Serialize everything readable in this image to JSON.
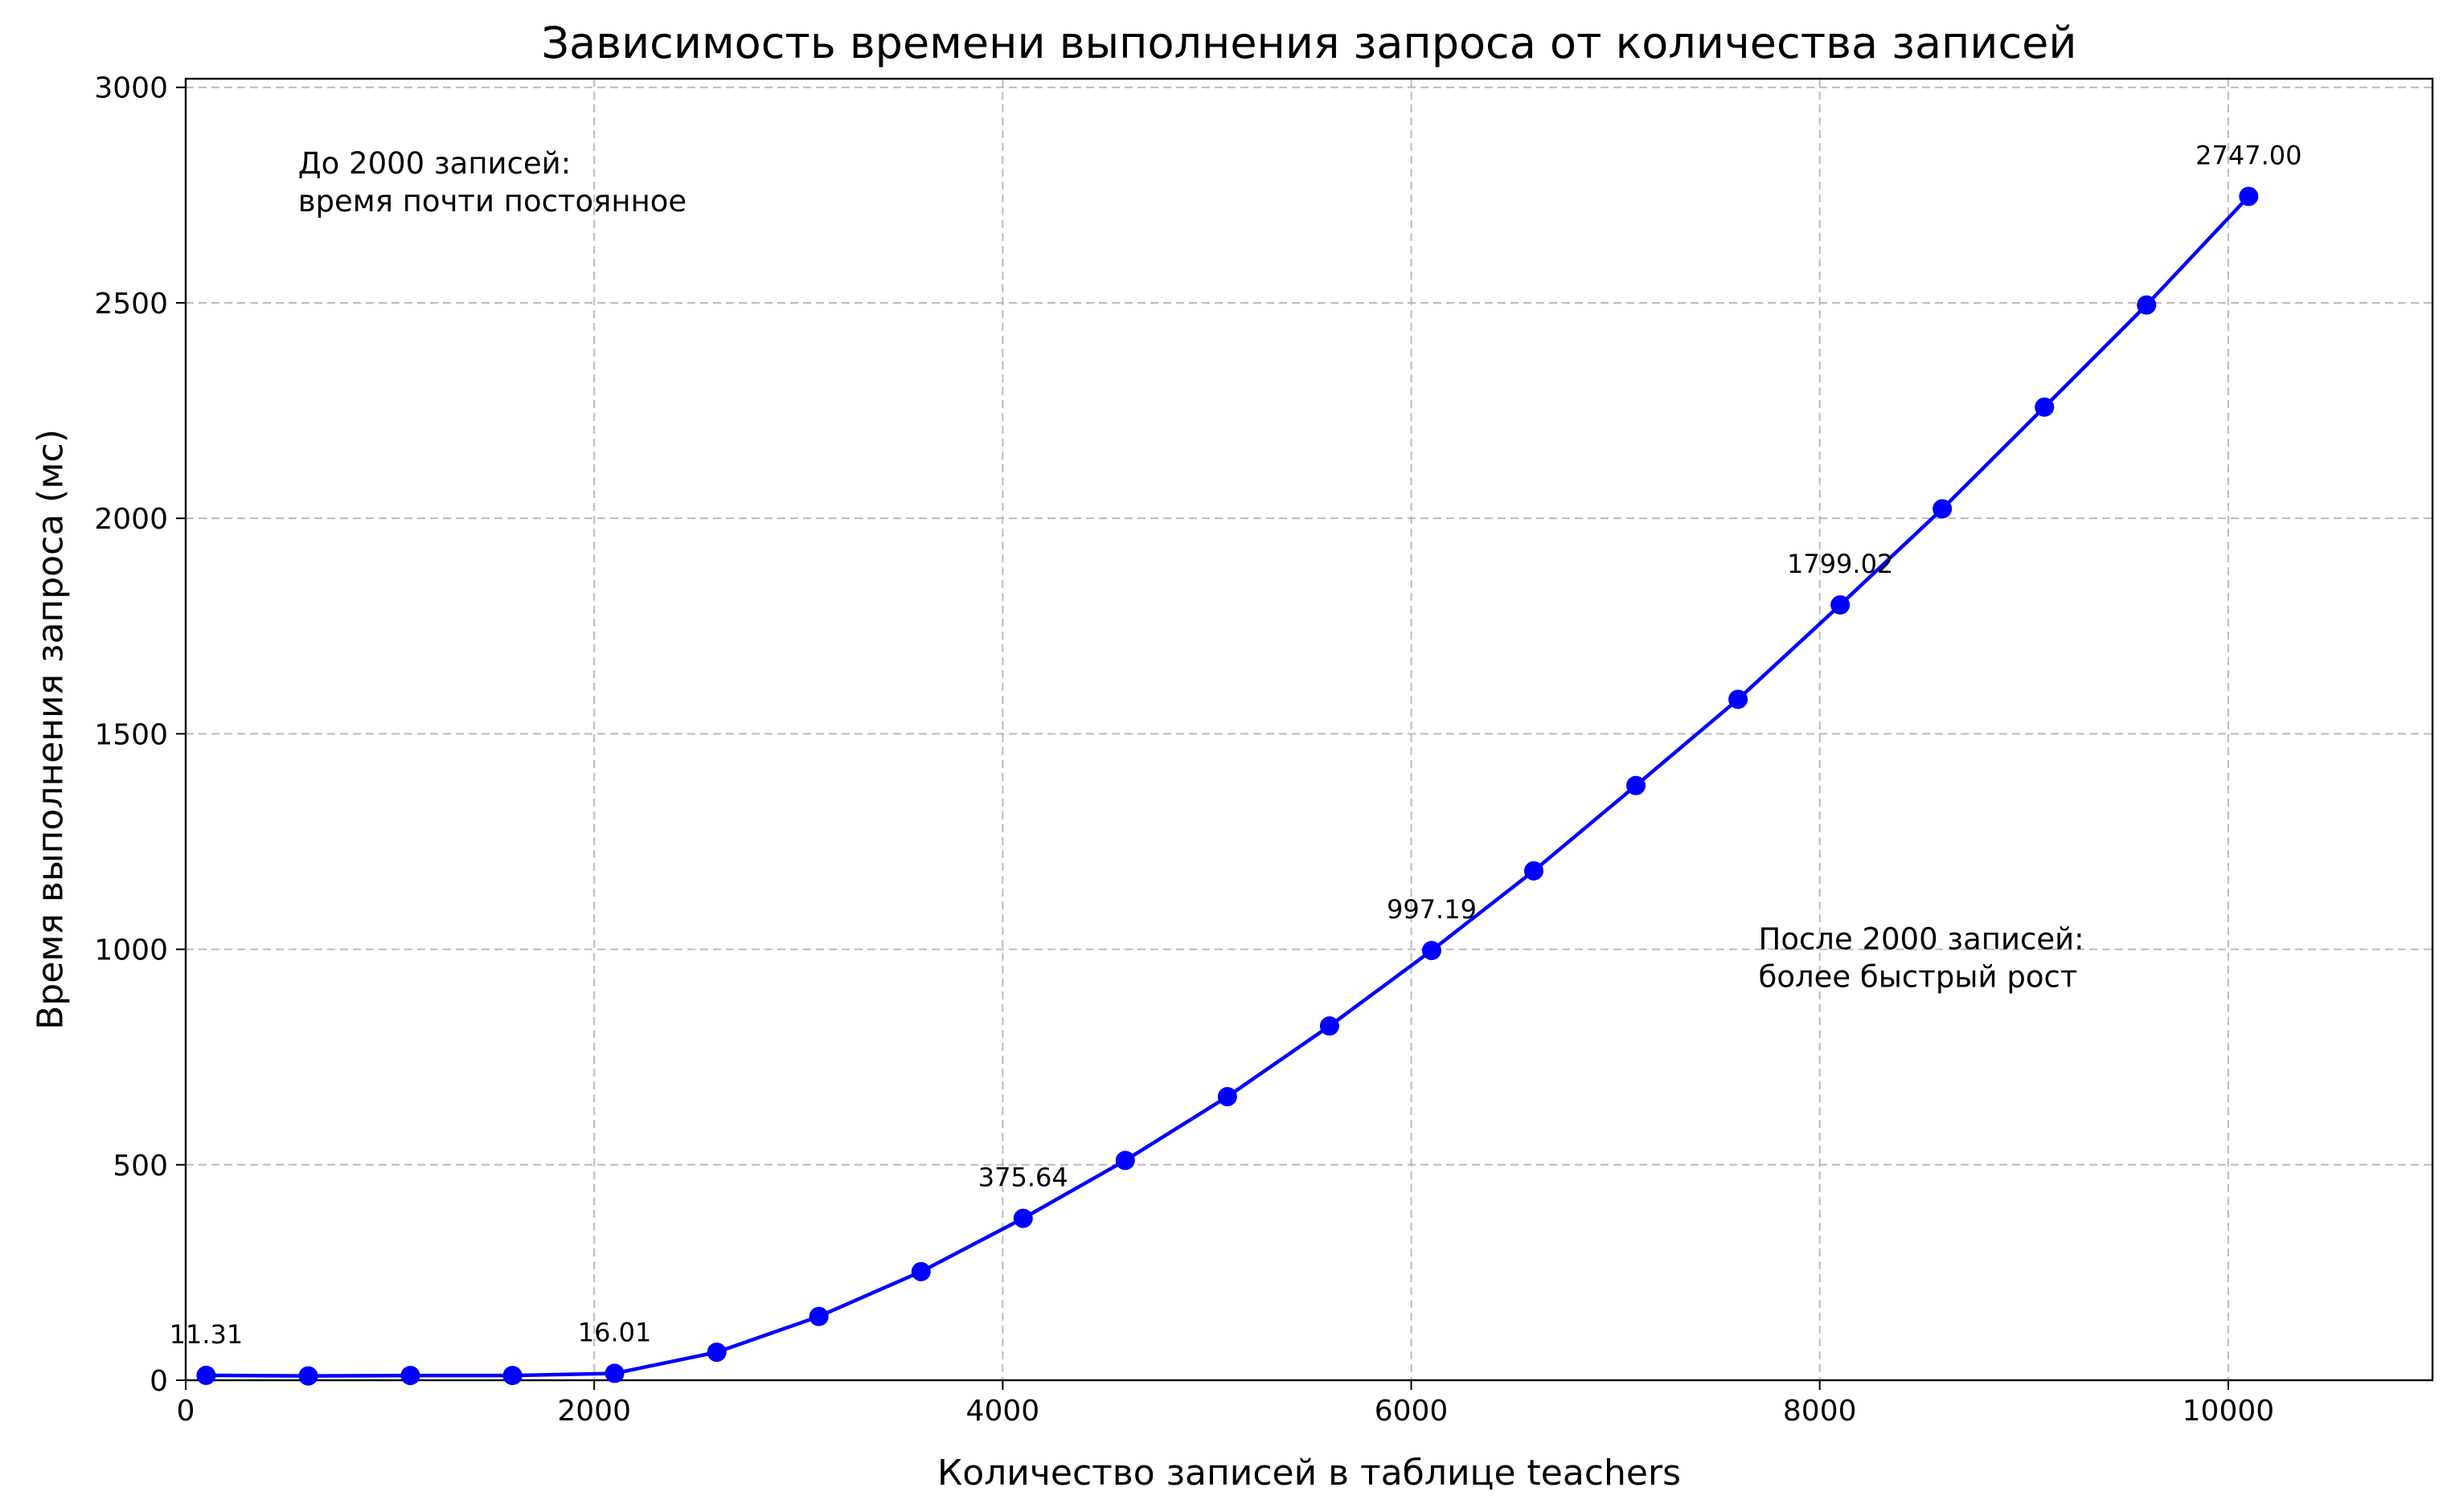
{
  "chart_data": {
    "type": "line",
    "title": "Зависимость времени выполнения запроса от количества записей",
    "xlabel": "Количество записей в таблице teachers",
    "ylabel": "Время выполнения запроса (мс)",
    "xlim": [
      0,
      11000
    ],
    "ylim": [
      0,
      3020
    ],
    "xticks": [
      0,
      2000,
      4000,
      6000,
      8000,
      10000
    ],
    "yticks": [
      0,
      500,
      1000,
      1500,
      2000,
      2500,
      3000
    ],
    "grid": true,
    "grid_style": "dashed",
    "series": [
      {
        "color": "#0000ff",
        "marker": "circle",
        "x": [
          100,
          600,
          1100,
          1600,
          2100,
          2600,
          3100,
          3600,
          4100,
          4600,
          5100,
          5600,
          6100,
          6600,
          7100,
          7600,
          8100,
          8600,
          9100,
          9600,
          10100
        ],
        "y": [
          11.31,
          10.0,
          11.0,
          11.0,
          16.01,
          65,
          148,
          252,
          375.64,
          510,
          658,
          822,
          997.19,
          1182,
          1380,
          1580,
          1799.02,
          2022,
          2258,
          2495,
          2747.0
        ]
      }
    ],
    "data_labels": [
      {
        "x": 100,
        "y": 11.31,
        "text": "11.31"
      },
      {
        "x": 2100,
        "y": 16.01,
        "text": "16.01"
      },
      {
        "x": 4100,
        "y": 375.64,
        "text": "375.64"
      },
      {
        "x": 6100,
        "y": 997.19,
        "text": "997.19"
      },
      {
        "x": 8100,
        "y": 1799.02,
        "text": "1799.02"
      },
      {
        "x": 10100,
        "y": 2747.0,
        "text": "2747.00"
      }
    ],
    "annotations": [
      {
        "x": 550,
        "y": 2800,
        "lines": [
          "До 2000 записей:",
          "время почти постоянное"
        ]
      },
      {
        "x": 7700,
        "y": 1000,
        "lines": [
          "После 2000 записей:",
          "более быстрый рост"
        ]
      }
    ]
  }
}
